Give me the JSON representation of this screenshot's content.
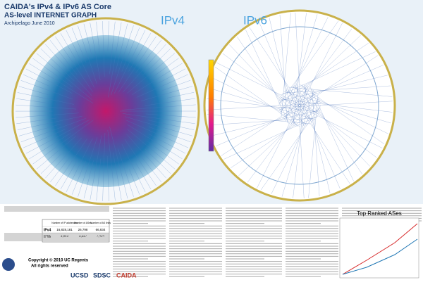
{
  "header": {
    "title": "CAIDA's IPv4 & IPv6 AS Core",
    "subtitle": "AS-level INTERNET GRAPH",
    "date": "Archipelago June 2010"
  },
  "panels": {
    "ipv4": "IPv4",
    "ipv6": "IPv6"
  },
  "table": {
    "columns": [
      "Number of IP addresses",
      "Number of ASes",
      "Number of AS links"
    ],
    "rows": [
      {
        "label": "IPv4",
        "cells": [
          "16,828,181",
          "26,798",
          "66,834"
        ]
      },
      {
        "label": "IPv6",
        "cells": [
          "3,863",
          "2,117",
          "7,434"
        ]
      }
    ]
  },
  "inset": {
    "title": "Top Ranked ASes"
  },
  "footer": {
    "copyright": "Copyright © 2010 UC Regents",
    "rights": "All rights reserved",
    "logos": [
      "UCSD",
      "SDSC",
      "CAIDA"
    ]
  }
}
